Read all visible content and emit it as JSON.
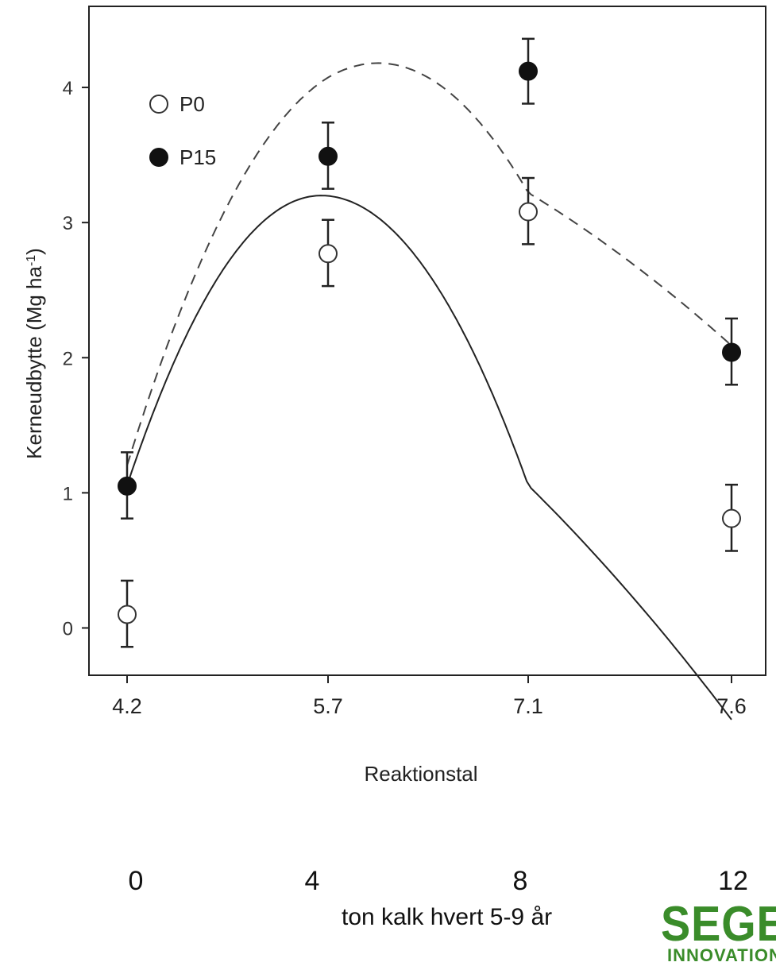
{
  "chart_data": {
    "type": "scatter",
    "ylabel": "Kerneudbytte (Mg ha",
    "ylabel_sup": "-1",
    "ylabel_end": ")",
    "xlabel": "Reaktionstal",
    "categories": [
      "4.2",
      "5.7",
      "7.1",
      "7.6"
    ],
    "y_ticks": [
      "0",
      "1",
      "2",
      "3",
      "4"
    ],
    "ylim": [
      -0.35,
      4.6
    ],
    "series": [
      {
        "name": "P0",
        "marker": "open-circle",
        "line": "solid",
        "values": [
          0.1,
          2.77,
          3.08,
          0.81
        ],
        "error_low": [
          -0.14,
          2.53,
          2.84,
          0.57
        ],
        "error_high": [
          0.35,
          3.02,
          3.33,
          1.06
        ],
        "fit": {
          "vertex_x": 5.65,
          "vertex_y": 3.2,
          "a": -1.02
        }
      },
      {
        "name": "P15",
        "marker": "filled-circle",
        "line": "dashed",
        "values": [
          1.05,
          3.49,
          4.12,
          2.04
        ],
        "error_low": [
          0.81,
          3.25,
          3.88,
          1.8
        ],
        "error_high": [
          1.3,
          3.74,
          4.36,
          2.29
        ],
        "fit": {
          "vertex_x": 6.05,
          "vertex_y": 4.18,
          "a": -0.87
        }
      }
    ],
    "legend_position": "top-left",
    "grid": false
  },
  "lime": {
    "values": [
      "0",
      "4",
      "8",
      "12"
    ],
    "caption": "ton kalk hvert 5-9 år"
  },
  "logo": {
    "main": "SEGES",
    "sub": "INNOVATION"
  }
}
